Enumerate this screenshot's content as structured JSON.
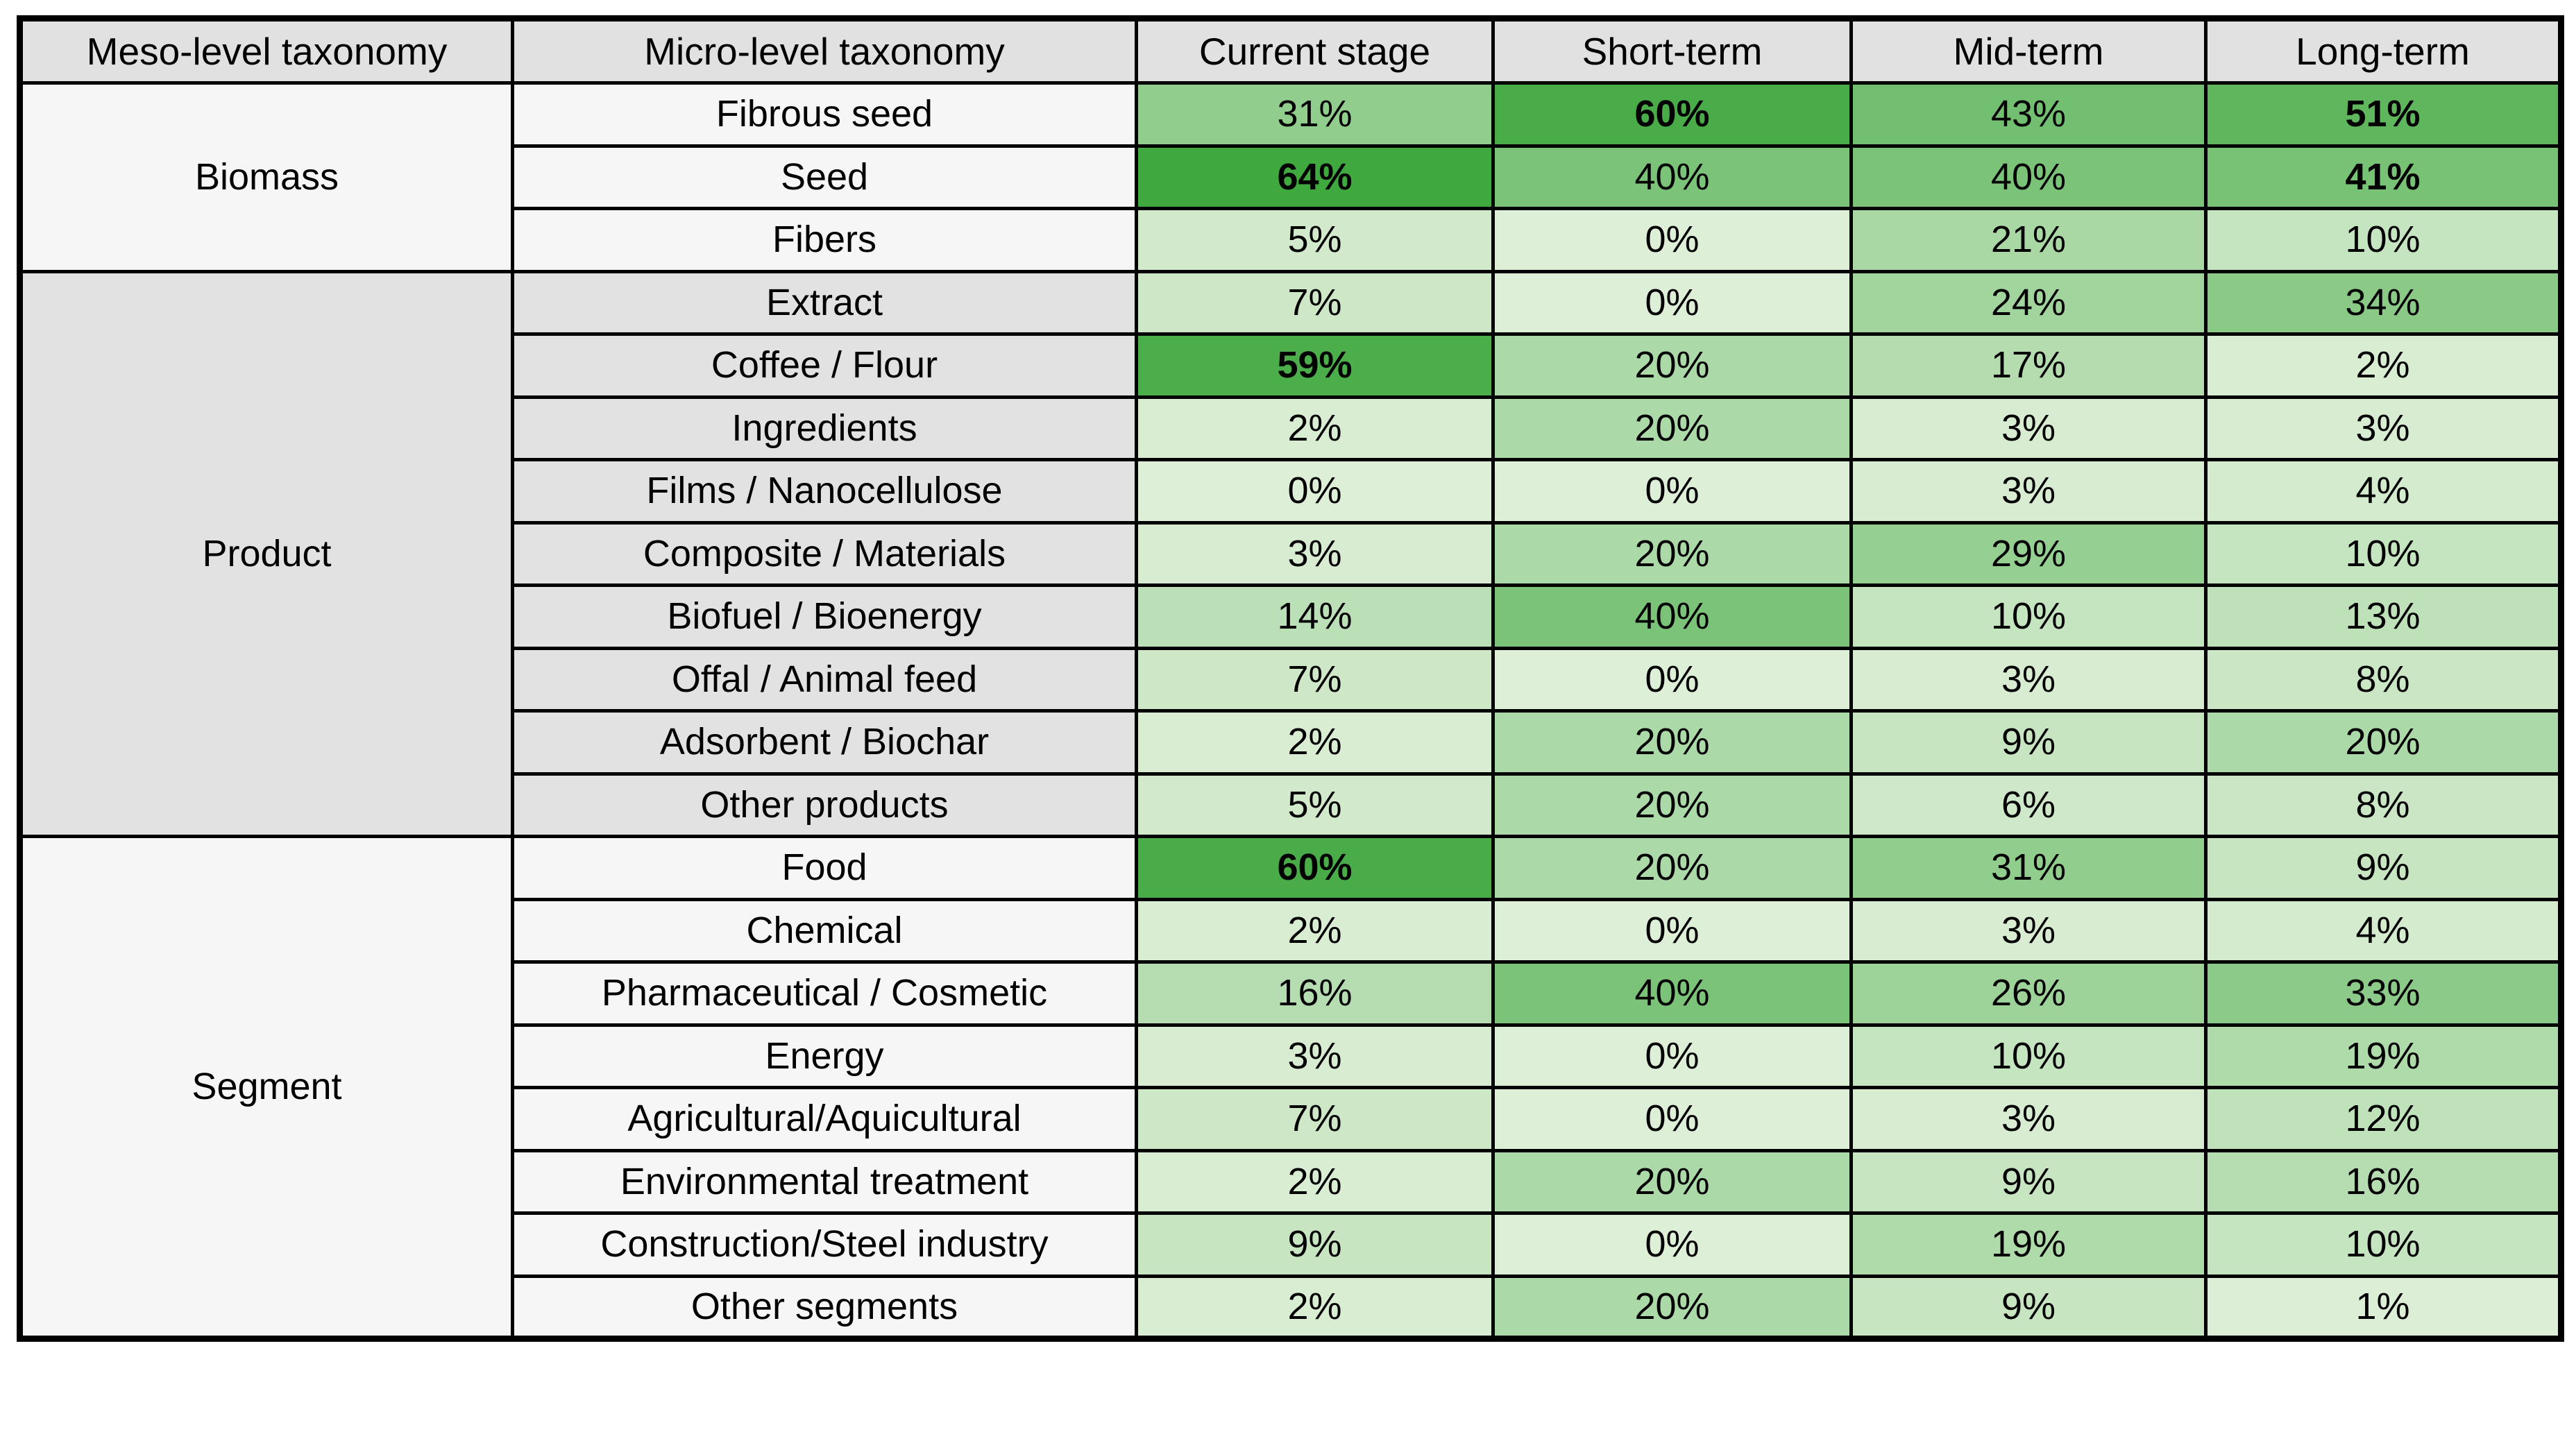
{
  "chart_data": {
    "type": "heatmap",
    "unit": "%",
    "columns": [
      "Meso-level taxonomy",
      "Micro-level taxonomy",
      "Current stage",
      "Short-term",
      "Mid-term",
      "Long-term"
    ],
    "value_columns": [
      "Current stage",
      "Short-term",
      "Mid-term",
      "Long-term"
    ],
    "value_range": [
      0,
      64
    ],
    "colors": {
      "heat_min": "#DEEFD8",
      "heat_max": "#3FA83E",
      "header_bg": "#E1E1E1",
      "section_light_bg": "#F6F6F6",
      "section_gray_bg": "#E2E2E2",
      "border": "#000000",
      "text": "#000000"
    },
    "sections": [
      {
        "meso": "Biomass",
        "tone": "light",
        "rows": [
          {
            "micro": "Fibrous seed",
            "values": [
              31,
              60,
              43,
              51
            ],
            "bold_cols": [
              1,
              3
            ]
          },
          {
            "micro": "Seed",
            "values": [
              64,
              40,
              40,
              41
            ],
            "bold_cols": [
              0,
              3
            ]
          },
          {
            "micro": "Fibers",
            "values": [
              5,
              0,
              21,
              10
            ],
            "bold_cols": []
          }
        ]
      },
      {
        "meso": "Product",
        "tone": "gray",
        "rows": [
          {
            "micro": "Extract",
            "values": [
              7,
              0,
              24,
              34
            ],
            "bold_cols": []
          },
          {
            "micro": "Coffee / Flour",
            "values": [
              59,
              20,
              17,
              2
            ],
            "bold_cols": [
              0
            ]
          },
          {
            "micro": "Ingredients",
            "values": [
              2,
              20,
              3,
              3
            ],
            "bold_cols": []
          },
          {
            "micro": "Films / Nanocellulose",
            "values": [
              0,
              0,
              3,
              4
            ],
            "bold_cols": []
          },
          {
            "micro": "Composite / Materials",
            "values": [
              3,
              20,
              29,
              10
            ],
            "bold_cols": []
          },
          {
            "micro": "Biofuel / Bioenergy",
            "values": [
              14,
              40,
              10,
              13
            ],
            "bold_cols": []
          },
          {
            "micro": "Offal / Animal feed",
            "values": [
              7,
              0,
              3,
              8
            ],
            "bold_cols": []
          },
          {
            "micro": "Adsorbent / Biochar",
            "values": [
              2,
              20,
              9,
              20
            ],
            "bold_cols": []
          },
          {
            "micro": "Other products",
            "values": [
              5,
              20,
              6,
              8
            ],
            "bold_cols": []
          }
        ]
      },
      {
        "meso": "Segment",
        "tone": "light",
        "rows": [
          {
            "micro": "Food",
            "values": [
              60,
              20,
              31,
              9
            ],
            "bold_cols": [
              0
            ]
          },
          {
            "micro": "Chemical",
            "values": [
              2,
              0,
              3,
              4
            ],
            "bold_cols": []
          },
          {
            "micro": "Pharmaceutical / Cosmetic",
            "values": [
              16,
              40,
              26,
              33
            ],
            "bold_cols": []
          },
          {
            "micro": "Energy",
            "values": [
              3,
              0,
              10,
              19
            ],
            "bold_cols": []
          },
          {
            "micro": "Agricultural/Aquicultural",
            "values": [
              7,
              0,
              3,
              12
            ],
            "bold_cols": []
          },
          {
            "micro": "Environmental treatment",
            "values": [
              2,
              20,
              9,
              16
            ],
            "bold_cols": []
          },
          {
            "micro": "Construction/Steel industry",
            "values": [
              9,
              0,
              19,
              10
            ],
            "bold_cols": []
          },
          {
            "micro": "Other segments",
            "values": [
              2,
              20,
              9,
              1
            ],
            "bold_cols": []
          }
        ]
      }
    ]
  }
}
